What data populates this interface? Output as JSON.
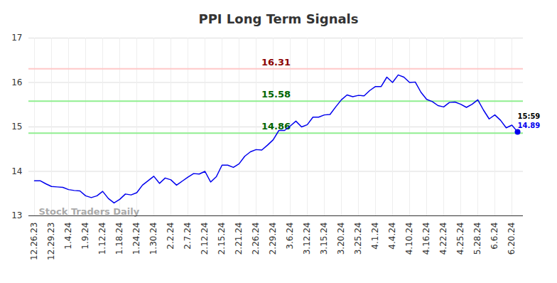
{
  "chart_data": {
    "type": "line",
    "title": "PPI Long Term Signals",
    "categories": [
      "12.26.23",
      null,
      null,
      "12.29.23",
      null,
      null,
      "1.4.24",
      null,
      null,
      "1.9.24",
      null,
      null,
      "1.12.24",
      null,
      null,
      "1.18.24",
      null,
      null,
      "1.24.24",
      null,
      null,
      "1.30.24",
      null,
      null,
      "2.2.24",
      null,
      null,
      "2.7.24",
      null,
      null,
      "2.12.24",
      null,
      null,
      "2.15.24",
      null,
      null,
      "2.21.24",
      null,
      null,
      "2.26.24",
      null,
      null,
      "2.29.24",
      null,
      null,
      "3.6.24",
      null,
      null,
      "3.12.24",
      null,
      null,
      "3.15.24",
      null,
      null,
      "3.20.24",
      null,
      null,
      "3.25.24",
      null,
      null,
      "4.1.24",
      null,
      null,
      "4.4.24",
      null,
      null,
      "4.10.24",
      null,
      null,
      "4.16.24",
      null,
      null,
      "4.22.24",
      null,
      null,
      "4.25.24",
      null,
      null,
      "5.28.24",
      null,
      null,
      "6.6.24",
      null,
      null,
      "6.20.24",
      null
    ],
    "values": [
      13.79,
      13.79,
      13.72,
      13.66,
      13.65,
      13.64,
      13.59,
      13.57,
      13.56,
      13.45,
      13.41,
      13.45,
      13.55,
      13.39,
      13.29,
      13.37,
      13.49,
      13.47,
      13.52,
      13.69,
      13.79,
      13.89,
      13.73,
      13.85,
      13.81,
      13.69,
      13.78,
      13.87,
      13.95,
      13.94,
      14.0,
      13.76,
      13.88,
      14.14,
      14.14,
      14.09,
      14.17,
      14.34,
      14.44,
      14.49,
      14.48,
      14.59,
      14.71,
      14.92,
      14.92,
      15.02,
      15.13,
      15.0,
      15.05,
      15.22,
      15.22,
      15.27,
      15.28,
      15.45,
      15.61,
      15.72,
      15.68,
      15.71,
      15.7,
      15.82,
      15.91,
      15.91,
      16.12,
      16.0,
      16.17,
      16.12,
      16.0,
      16.01,
      15.78,
      15.62,
      15.57,
      15.48,
      15.45,
      15.55,
      15.56,
      15.51,
      15.44,
      15.51,
      15.61,
      15.38,
      15.18,
      15.27,
      15.15,
      14.98,
      15.04,
      14.89
    ],
    "color": "#0000ee",
    "ylim": [
      13,
      17
    ],
    "yticks": [
      13,
      14,
      15,
      16,
      17
    ],
    "grid": true,
    "levels": [
      {
        "value": 16.31,
        "label": "16.31",
        "color": "#ffc8c8",
        "label_color": "#8b0000"
      },
      {
        "value": 15.58,
        "label": "15.58",
        "color": "#90ee90",
        "label_color": "#006400"
      },
      {
        "value": 14.86,
        "label": "14.86",
        "color": "#90ee90",
        "label_color": "#006400"
      }
    ],
    "last_point": {
      "time": "15:59",
      "value": 14.89,
      "marker": "circle"
    },
    "watermark": "Stock Traders Daily"
  }
}
